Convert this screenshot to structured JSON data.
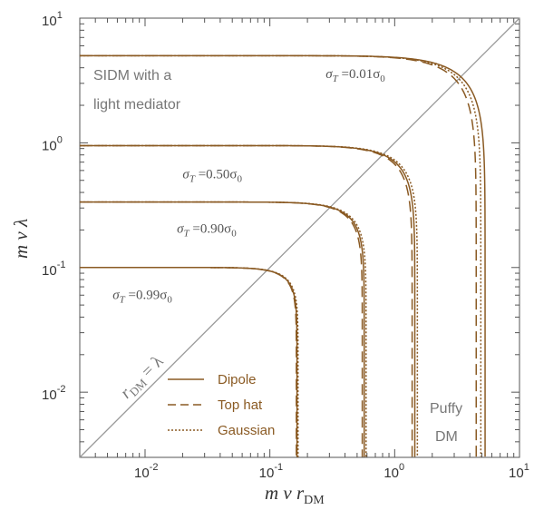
{
  "chart_data": {
    "type": "line",
    "title": "",
    "x_scale": "log",
    "y_scale": "log",
    "xlim": [
      0.003,
      10
    ],
    "ylim": [
      0.003,
      10
    ],
    "x_ticks": [
      {
        "value": 0.01,
        "base": "10",
        "exp": "-2"
      },
      {
        "value": 0.1,
        "base": "10",
        "exp": "-1"
      },
      {
        "value": 1,
        "base": "10",
        "exp": "0"
      },
      {
        "value": 10,
        "base": "10",
        "exp": "1"
      }
    ],
    "y_ticks": [
      {
        "value": 0.01,
        "base": "10",
        "exp": "-2"
      },
      {
        "value": 0.1,
        "base": "10",
        "exp": "-1"
      },
      {
        "value": 1,
        "base": "10",
        "exp": "0"
      },
      {
        "value": 10,
        "base": "10",
        "exp": "1"
      }
    ],
    "xlabel": {
      "main": "m v r",
      "sub": "DM"
    },
    "ylabel": "m v λ",
    "grid": false,
    "legend": {
      "placement": "bottom-left",
      "entries": [
        {
          "label": "Dipole",
          "style": "solid"
        },
        {
          "label": "Top hat",
          "style": "dashed"
        },
        {
          "label": "Gaussian",
          "style": "dotted"
        }
      ]
    },
    "curve_color": "#8a5a23",
    "diagonal_color": "#999999",
    "families": [
      {
        "sigma_label": {
          "prefix": "σ",
          "sub": "T",
          "mid": " =0.01σ",
          "suffix_sub": "0"
        },
        "level": 5.0,
        "label_at": [
          0.28,
          3.3
        ],
        "series": [
          {
            "name": "Dipole",
            "x_cross": 5.3
          },
          {
            "name": "Top hat",
            "x_cross": 4.5
          },
          {
            "name": "Gaussian",
            "x_cross": 4.9
          }
        ]
      },
      {
        "sigma_label": {
          "prefix": "σ",
          "sub": "T",
          "mid": " =0.50σ",
          "suffix_sub": "0"
        },
        "level": 0.95,
        "label_at": [
          0.02,
          0.52
        ],
        "series": [
          {
            "name": "Dipole",
            "x_cross": 1.45
          },
          {
            "name": "Top hat",
            "x_cross": 1.38
          },
          {
            "name": "Gaussian",
            "x_cross": 1.52
          }
        ]
      },
      {
        "sigma_label": {
          "prefix": "σ",
          "sub": "T",
          "mid": " =0.90σ",
          "suffix_sub": "0"
        },
        "level": 0.335,
        "label_at": [
          0.018,
          0.19
        ],
        "series": [
          {
            "name": "Dipole",
            "x_cross": 0.57
          },
          {
            "name": "Top hat",
            "x_cross": 0.55
          },
          {
            "name": "Gaussian",
            "x_cross": 0.59
          }
        ]
      },
      {
        "sigma_label": {
          "prefix": "σ",
          "sub": "T",
          "mid": " =0.99σ",
          "suffix_sub": "0"
        },
        "level": 0.1,
        "label_at": [
          0.0055,
          0.056
        ],
        "series": [
          {
            "name": "Dipole",
            "x_cross": 0.165
          },
          {
            "name": "Top hat",
            "x_cross": 0.163
          },
          {
            "name": "Gaussian",
            "x_cross": 0.168
          }
        ]
      }
    ],
    "annotations": {
      "sidm_line1": "SIDM with a",
      "sidm_line2": "light mediator",
      "puffy_line1": "Puffy",
      "puffy_line2": "DM",
      "diagonal_label": {
        "main": "r",
        "sub": "DM",
        "rest": " = λ"
      }
    }
  }
}
